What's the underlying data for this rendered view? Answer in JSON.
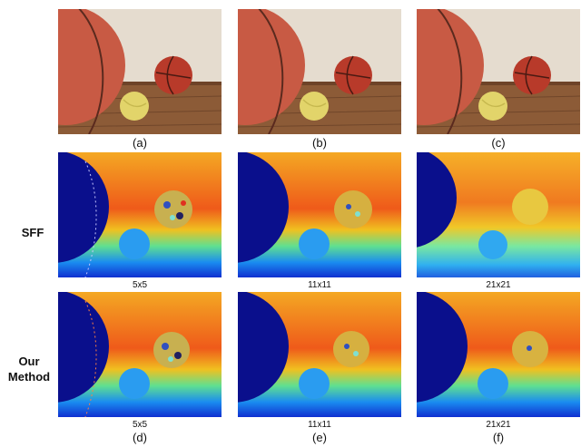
{
  "captions": {
    "a": "(a)",
    "b": "(b)",
    "c": "(c)",
    "d": "(d)",
    "e": "(e)",
    "f": "(f)"
  },
  "row_labels": {
    "sff": "SFF",
    "ours_line1": "Our",
    "ours_line2": "Method"
  },
  "window_sizes": {
    "sff": [
      "5x5",
      "11x11",
      "21x21"
    ],
    "ours": [
      "5x5",
      "11x11",
      "21x21"
    ]
  },
  "colors": {
    "depth_far": "#0a0f8c",
    "depth_mid": "#f0a020",
    "depth_near": "#2a8cf0",
    "wall": "#e8dfd2",
    "floor": "#8b5a36",
    "basketball": "#c95a45",
    "tennis_ball": "#e6d86a"
  }
}
